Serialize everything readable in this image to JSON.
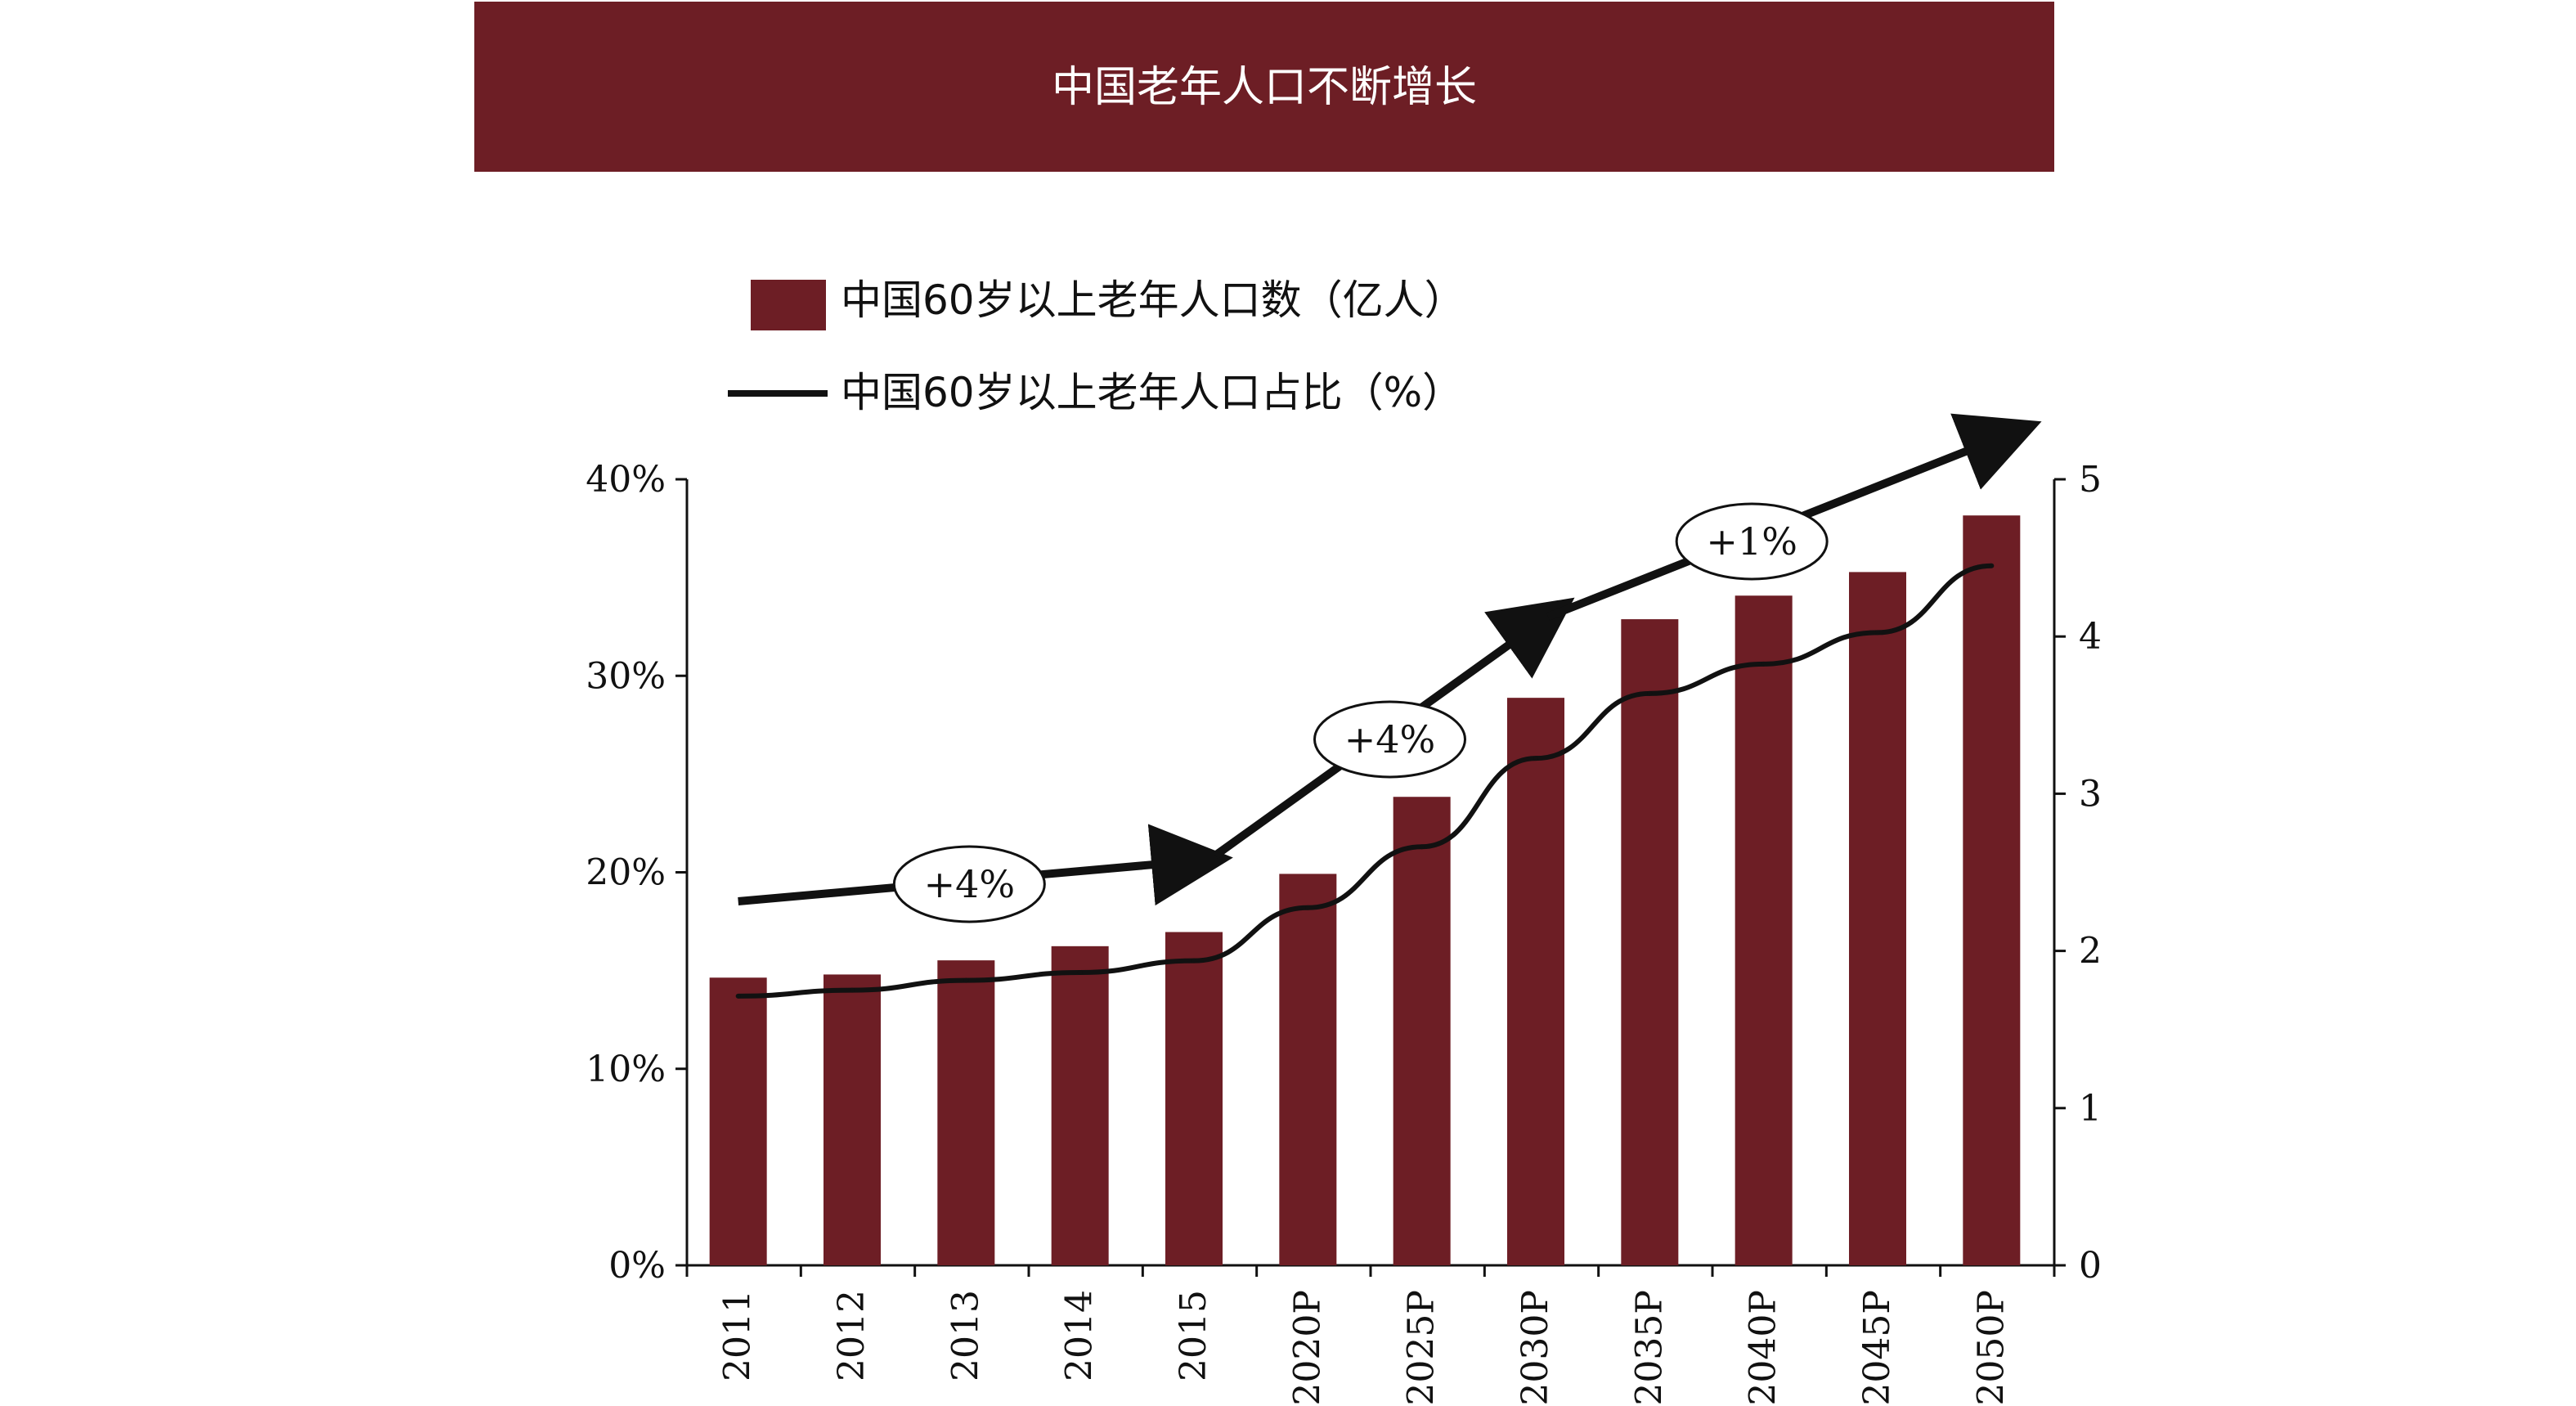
{
  "banner": {
    "title": "中国老年人口不断增长"
  },
  "colors": {
    "bar": "#6d1e25",
    "line": "#111111",
    "banner": "#6d1e25"
  },
  "legend": [
    {
      "label": "中国60岁以上老年人口数（亿人）",
      "marker": "bar"
    },
    {
      "label": "中国60岁以上老年人口占比（%）",
      "marker": "line"
    }
  ],
  "chart_data": {
    "type": "bar",
    "categories": [
      "2011",
      "2012",
      "2013",
      "2014",
      "2015",
      "2020P",
      "2025P",
      "2030P",
      "2035P",
      "2040P",
      "2045P",
      "2050P"
    ],
    "series": [
      {
        "name": "中国60岁以上老年人口数（亿人）",
        "type": "bar",
        "axis": "right",
        "values": [
          1.83,
          1.85,
          1.94,
          2.03,
          2.12,
          2.49,
          2.98,
          3.61,
          4.11,
          4.26,
          4.41,
          4.77
        ]
      },
      {
        "name": "中国60岁以上老年人口占比（%）",
        "type": "line",
        "axis": "left",
        "values": [
          13.7,
          14.0,
          14.5,
          14.9,
          15.5,
          18.2,
          21.3,
          25.8,
          29.1,
          30.6,
          32.2,
          35.6
        ]
      }
    ],
    "y_left": {
      "ticks": [
        "0%",
        "10%",
        "20%",
        "30%",
        "40%"
      ],
      "range": [
        0,
        40
      ],
      "unit": "%"
    },
    "y_right": {
      "ticks": [
        "0",
        "1",
        "2",
        "3",
        "4",
        "5"
      ],
      "range": [
        0,
        5
      ]
    },
    "annotations": [
      {
        "text": "+4%",
        "segment": "2011–2015"
      },
      {
        "text": "+4%",
        "segment": "2015–2030P"
      },
      {
        "text": "+1%",
        "segment": "2030P–2050P"
      }
    ],
    "grid": false,
    "legend_position": "top-left"
  }
}
